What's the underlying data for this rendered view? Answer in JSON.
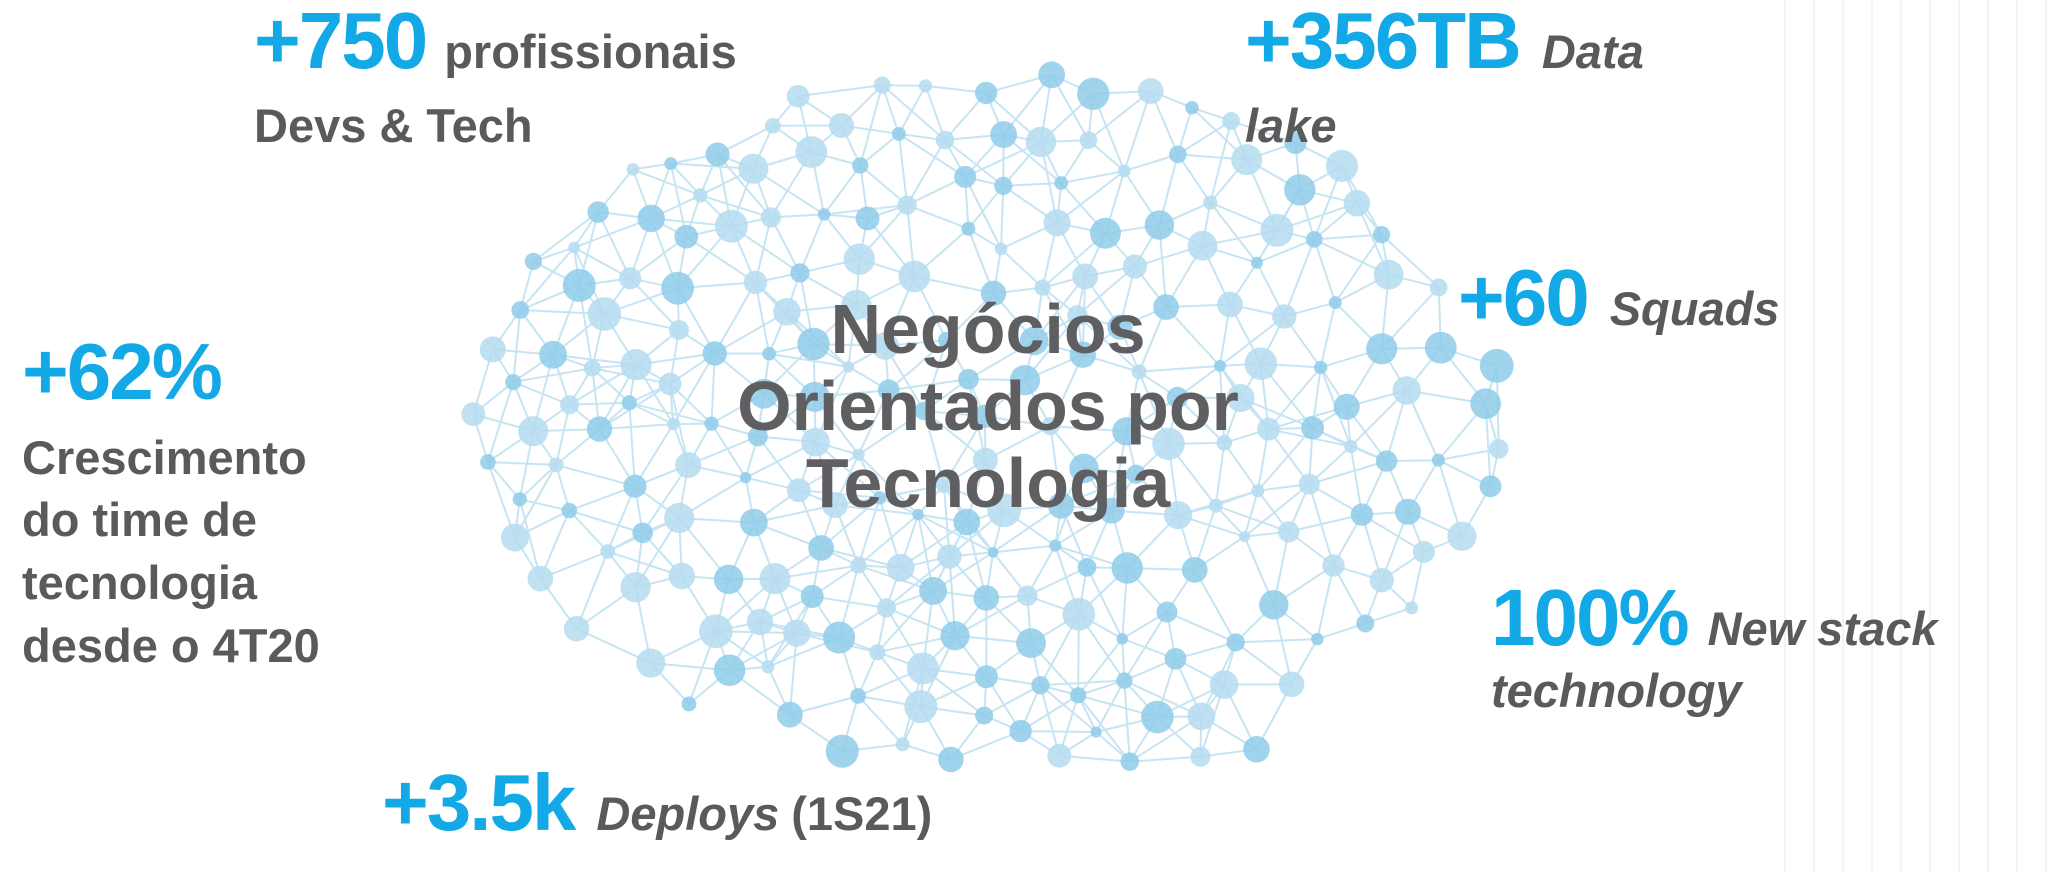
{
  "headline": [
    "Negócios",
    "Orientados por",
    "Tecnologia"
  ],
  "stats": [
    {
      "value": "+750",
      "label": [
        "profissionais",
        "Devs & Tech"
      ]
    },
    {
      "value": "+356TB",
      "label": [
        "Data",
        "lake"
      ]
    },
    {
      "value": "+60",
      "label": [
        "Squads"
      ]
    },
    {
      "value": "+62%",
      "label": [
        "Crescimento",
        "do time de",
        "tecnologia",
        "desde o 4T20"
      ]
    },
    {
      "value": "100%",
      "label": [
        "New stack",
        "technology"
      ]
    },
    {
      "value": "+3.5k",
      "label": [
        "Deploys"
      ],
      "note": "(1S21)"
    }
  ]
}
